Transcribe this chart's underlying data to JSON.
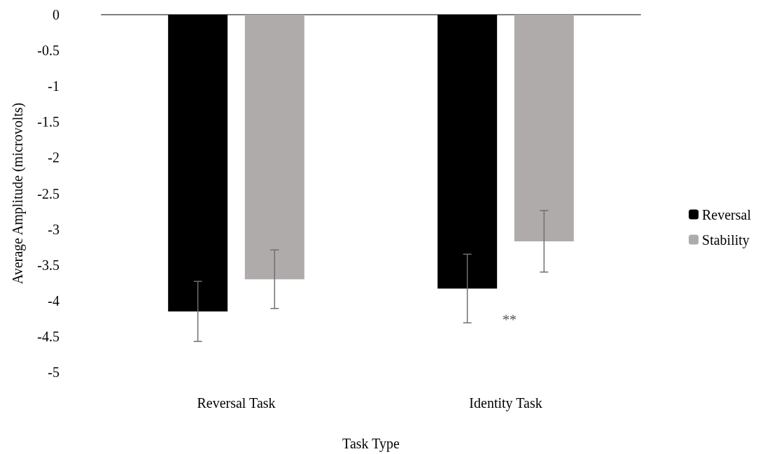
{
  "chart_data": {
    "type": "bar",
    "xlabel": "Task Type",
    "ylabel": "Average Amplitude (microvolts)",
    "categories": [
      "Reversal Task",
      "Identity Task"
    ],
    "series": [
      {
        "name": "Reversal",
        "color": "#000000",
        "values": [
          -4.15,
          -3.83
        ],
        "errors": [
          0.42,
          0.48
        ]
      },
      {
        "name": "Stability",
        "color": "#aeabaa",
        "values": [
          -3.7,
          -3.17
        ],
        "errors": [
          0.41,
          0.43
        ]
      }
    ],
    "ylim": [
      -5,
      0
    ],
    "yticks": [
      -5,
      -4.5,
      -4,
      -3.5,
      -3,
      -2.5,
      -2,
      -1.5,
      -1,
      -0.5,
      0
    ],
    "grid": false,
    "legend": "right",
    "annotations": [
      "**"
    ]
  }
}
